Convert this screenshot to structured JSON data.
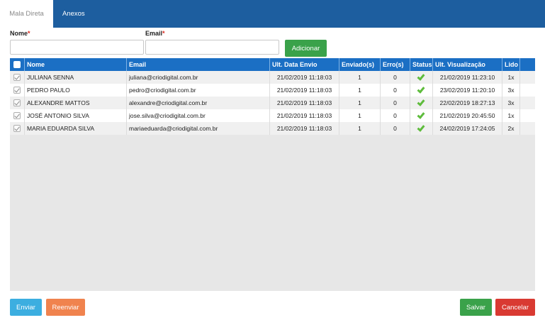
{
  "tabs": [
    {
      "label": "Mala Direta",
      "active": true
    },
    {
      "label": "Anexos",
      "active": false
    }
  ],
  "form": {
    "nome_label": "Nome",
    "email_label": "Email",
    "required_mark": "*",
    "nome_value": "",
    "email_value": "",
    "add_label": "Adicionar"
  },
  "table": {
    "headers": {
      "nome": "Nome",
      "email": "Email",
      "ult_data_envio": "Ult. Data Envio",
      "enviados": "Enviado(s)",
      "erros": "Erro(s)",
      "status": "Status",
      "ult_visualizacao": "Ult. Visualização",
      "lido": "Lido"
    },
    "rows": [
      {
        "nome": "JULIANA SENNA",
        "email": "juliana@criodigital.com.br",
        "ult_data_envio": "21/02/2019 11:18:03",
        "enviados": "1",
        "erros": "0",
        "status": "ok",
        "ult_visualizacao": "21/02/2019 11:23:10",
        "lido": "1x"
      },
      {
        "nome": "PEDRO PAULO",
        "email": "pedro@criodigital.com.br",
        "ult_data_envio": "21/02/2019 11:18:03",
        "enviados": "1",
        "erros": "0",
        "status": "ok",
        "ult_visualizacao": "23/02/2019 11:20:10",
        "lido": "3x"
      },
      {
        "nome": "ALEXANDRE MATTOS",
        "email": "alexandre@criodigital.com.br",
        "ult_data_envio": "21/02/2019 11:18:03",
        "enviados": "1",
        "erros": "0",
        "status": "ok",
        "ult_visualizacao": "22/02/2019 18:27:13",
        "lido": "3x"
      },
      {
        "nome": "JOSÉ ANTONIO SILVA",
        "email": "jose.silva@criodigital.com.br",
        "ult_data_envio": "21/02/2019 11:18:03",
        "enviados": "1",
        "erros": "0",
        "status": "ok",
        "ult_visualizacao": "21/02/2019 20:45:50",
        "lido": "1x"
      },
      {
        "nome": "MARIA EDUARDA SILVA",
        "email": "mariaeduarda@criodigital.com.br",
        "ult_data_envio": "21/02/2019 11:18:03",
        "enviados": "1",
        "erros": "0",
        "status": "ok",
        "ult_visualizacao": "24/02/2019 17:24:05",
        "lido": "2x"
      }
    ]
  },
  "footer": {
    "send_label": "Enviar",
    "resend_label": "Reenviar",
    "save_label": "Salvar",
    "cancel_label": "Cancelar"
  },
  "colors": {
    "tabbar": "#1d5e9f",
    "table_header": "#1b6fc4",
    "success": "#3aa24a",
    "info": "#3caee0",
    "warning": "#f0834e",
    "danger": "#d93a32",
    "status_check": "#5ebc3c"
  },
  "icons": {
    "status_ok": "check-icon",
    "row_select": "checkbox"
  }
}
